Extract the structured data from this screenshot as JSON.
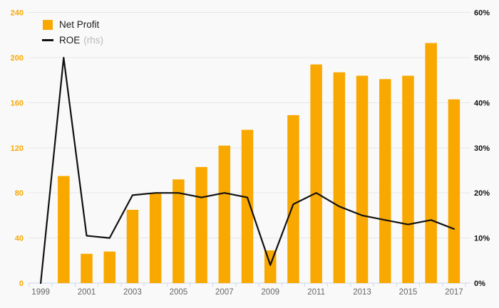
{
  "chart_data": {
    "type": "bar+line",
    "title": "",
    "categories": [
      "1999",
      "2000",
      "2001",
      "2002",
      "2003",
      "2004",
      "2005",
      "2006",
      "2007",
      "2008",
      "2009",
      "2010",
      "2011",
      "2012",
      "2013",
      "2014",
      "2015",
      "2016",
      "2017"
    ],
    "series": [
      {
        "name": "Net Profit",
        "type": "bar",
        "axis": "left",
        "color": "#F9A800",
        "values": [
          0,
          95,
          26,
          28,
          65,
          80,
          92,
          103,
          122,
          136,
          29,
          149,
          194,
          187,
          184,
          181,
          184,
          213,
          163
        ]
      },
      {
        "name": "ROE",
        "type": "line",
        "axis": "right",
        "unit": "%",
        "color": "#111111",
        "values": [
          0,
          50,
          10.5,
          10,
          19.5,
          20,
          20,
          19,
          20,
          19,
          4,
          17.5,
          20,
          17,
          15,
          14,
          13,
          14,
          12
        ]
      }
    ],
    "left_axis": {
      "min": 0,
      "max": 240,
      "step": 40,
      "labels": [
        "0",
        "40",
        "80",
        "120",
        "160",
        "200",
        "240"
      ],
      "label_color": "#F9A800"
    },
    "right_axis": {
      "min": 0,
      "max": 60,
      "step": 10,
      "labels": [
        "0%",
        "10%",
        "20%",
        "30%",
        "40%",
        "50%",
        "60%"
      ],
      "label_color": "#111111"
    },
    "x_tick_labels": [
      "1999",
      "2001",
      "2003",
      "2005",
      "2007",
      "2009",
      "2011",
      "2013",
      "2015",
      "2017"
    ],
    "grid": true,
    "legend_position": "top-left",
    "legend": {
      "entries": [
        {
          "label": "Net Profit",
          "marker": "square"
        },
        {
          "label": "ROE",
          "suffix": "(rhs)",
          "marker": "line"
        }
      ]
    },
    "colors": {
      "background": "#f9f9f9",
      "gridline": "#e6e6e6",
      "axis_line": "#ccd6eb",
      "year_label": "#666666",
      "legend_suffix": "#b8b8b8"
    }
  }
}
